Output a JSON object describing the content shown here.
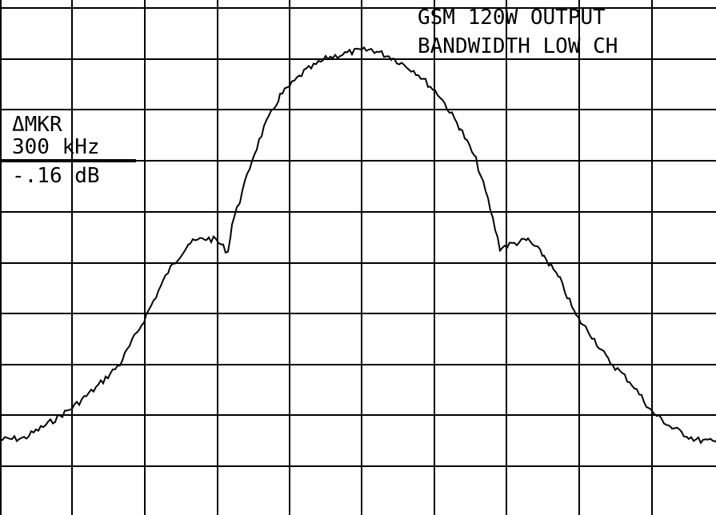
{
  "header": {
    "line1": "GSM 120W OUTPUT",
    "line2": "BANDWIDTH LOW CH"
  },
  "marker": {
    "label": "ΔMKR",
    "frequency": "300 kHz",
    "level": "-.16 dB"
  }
}
